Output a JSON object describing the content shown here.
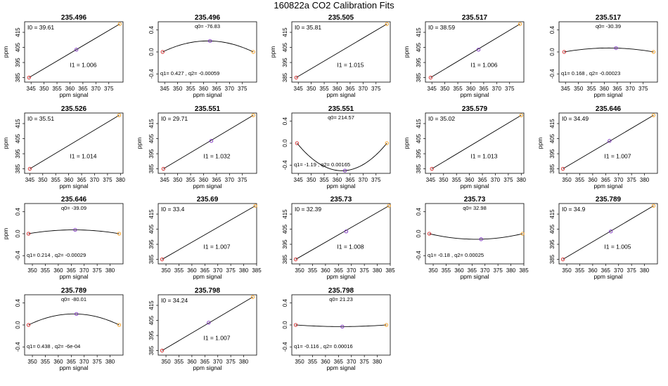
{
  "page_title": "160822a   CO2 Calibration Fits",
  "colors": {
    "line": "#000000",
    "point_low": "#d62728",
    "point_mid": "#7b2fbe",
    "point_high": "#ff9f1c"
  },
  "chart_data": [
    {
      "type": "line",
      "title": "235.496",
      "kind": "linear",
      "xlabel": "ppm signal",
      "ylabel": "ppm",
      "xlim": [
        342.5,
        380.5
      ],
      "ylim": [
        382,
        422
      ],
      "xticks": [
        345,
        350,
        355,
        360,
        365,
        370,
        375
      ],
      "yticks": [
        385,
        395,
        405,
        415
      ],
      "x": [
        344.2,
        362.5,
        379.2
      ],
      "y": [
        385.0,
        403.5,
        420.5
      ],
      "coef_label_top": "I0 =  39.61",
      "coef_label_bottom": "I1 =  1.006"
    },
    {
      "type": "line",
      "title": "235.496",
      "kind": "quadratic",
      "xlabel": "ppm signal",
      "ylabel": "",
      "xlim": [
        342.5,
        380.5
      ],
      "ylim": [
        -0.55,
        0.55
      ],
      "xticks": [
        345,
        350,
        355,
        360,
        365,
        370,
        375
      ],
      "yticks": [
        -0.4,
        0.0,
        0.4
      ],
      "x": [
        344.2,
        362.5,
        379.2
      ],
      "y": [
        0.0,
        0.2,
        0.0
      ],
      "coef_label_top": "q0= -76.83",
      "coef_label_bottom": "q1= 0.427 , q2= -0.00059"
    },
    {
      "type": "line",
      "title": "235.505",
      "kind": "linear",
      "xlabel": "ppm signal",
      "ylabel": "ppm",
      "xlim": [
        342.5,
        380.5
      ],
      "ylim": [
        382,
        422
      ],
      "xticks": [
        345,
        350,
        355,
        360,
        365,
        370,
        375
      ],
      "yticks": [
        385,
        395,
        405,
        415
      ],
      "x": [
        344.2,
        379.2
      ],
      "y": [
        385.0,
        420.5
      ],
      "coef_label_top": "I0 =  35.81",
      "coef_label_bottom": "I1 =  1.015"
    },
    {
      "type": "line",
      "title": "235.517",
      "kind": "linear",
      "xlabel": "ppm signal",
      "ylabel": "ppm",
      "xlim": [
        342.5,
        380.5
      ],
      "ylim": [
        382,
        422
      ],
      "xticks": [
        345,
        350,
        355,
        360,
        365,
        370,
        375
      ],
      "yticks": [
        385,
        395,
        405,
        415
      ],
      "x": [
        344.5,
        363.0,
        379.0
      ],
      "y": [
        385.0,
        403.5,
        420.5
      ],
      "coef_label_top": "I0 =  38.59",
      "coef_label_bottom": "I1 =  1.006"
    },
    {
      "type": "line",
      "title": "235.517",
      "kind": "quadratic",
      "xlabel": "ppm signal",
      "ylabel": "",
      "xlim": [
        342.5,
        380.5
      ],
      "ylim": [
        -0.55,
        0.55
      ],
      "xticks": [
        345,
        350,
        355,
        360,
        365,
        370,
        375
      ],
      "yticks": [
        -0.4,
        0.0,
        0.4
      ],
      "x": [
        344.5,
        364.5,
        379.0
      ],
      "y": [
        0.0,
        0.07,
        0.0
      ],
      "coef_label_top": "q0= -30.39",
      "coef_label_bottom": "q1= 0.168 , q2= -0.00023"
    },
    {
      "type": "line",
      "title": "235.526",
      "kind": "linear",
      "xlabel": "ppm signal",
      "ylabel": "ppm",
      "xlim": [
        343.0,
        381.0
      ],
      "ylim": [
        382,
        422
      ],
      "xticks": [
        345,
        350,
        355,
        360,
        365,
        370,
        375,
        380
      ],
      "yticks": [
        385,
        395,
        405,
        415
      ],
      "x": [
        345.0,
        379.5
      ],
      "y": [
        385.0,
        420.5
      ],
      "coef_label_top": "I0 =  35.51",
      "coef_label_bottom": "I1 =  1.014"
    },
    {
      "type": "line",
      "title": "235.551",
      "kind": "linear",
      "xlabel": "ppm signal",
      "ylabel": "ppm",
      "xlim": [
        342.5,
        380.5
      ],
      "ylim": [
        382,
        422
      ],
      "xticks": [
        345,
        350,
        355,
        360,
        365,
        370,
        375
      ],
      "yticks": [
        385,
        395,
        405,
        415
      ],
      "x": [
        344.5,
        363.0,
        379.2
      ],
      "y": [
        385.0,
        403.5,
        420.5
      ],
      "coef_label_top": "I0 =  29.71",
      "coef_label_bottom": "I1 =  1.032"
    },
    {
      "type": "line",
      "title": "235.551",
      "kind": "quadratic",
      "xlabel": "ppm signal",
      "ylabel": "",
      "xlim": [
        342.5,
        380.5
      ],
      "ylim": [
        -0.55,
        0.55
      ],
      "xticks": [
        345,
        350,
        355,
        360,
        365,
        370,
        375
      ],
      "yticks": [
        -0.4,
        0.0,
        0.4
      ],
      "x": [
        344.5,
        363.0,
        379.2
      ],
      "y": [
        0.0,
        -0.5,
        0.0
      ],
      "coef_label_top": "q0= 214.57",
      "coef_label_bottom": "q1= -1.19 , q2= 0.00165"
    },
    {
      "type": "line",
      "title": "235.579",
      "kind": "linear",
      "xlabel": "ppm signal",
      "ylabel": "ppm",
      "xlim": [
        343.0,
        381.0
      ],
      "ylim": [
        382,
        422
      ],
      "xticks": [
        345,
        350,
        355,
        360,
        365,
        370,
        375,
        380
      ],
      "yticks": [
        385,
        395,
        405,
        415
      ],
      "x": [
        345.5,
        380.0
      ],
      "y": [
        385.0,
        420.5
      ],
      "coef_label_top": "I0 =  35.02",
      "coef_label_bottom": "I1 =  1.013"
    },
    {
      "type": "line",
      "title": "235.646",
      "kind": "linear",
      "xlabel": "ppm signal",
      "ylabel": "ppm",
      "xlim": [
        347.0,
        385.0
      ],
      "ylim": [
        382,
        422
      ],
      "xticks": [
        350,
        355,
        360,
        365,
        370,
        375,
        380
      ],
      "yticks": [
        385,
        395,
        405,
        415
      ],
      "x": [
        348.5,
        366.5,
        383.5
      ],
      "y": [
        385.0,
        403.5,
        420.5
      ],
      "coef_label_top": "I0 =  34.49",
      "coef_label_bottom": "I1 =  1.007"
    },
    {
      "type": "line",
      "title": "235.646",
      "kind": "quadratic",
      "xlabel": "ppm signal",
      "ylabel": "ppm",
      "xlim": [
        347.0,
        385.0
      ],
      "ylim": [
        -0.55,
        0.55
      ],
      "xticks": [
        350,
        355,
        360,
        365,
        370,
        375,
        380
      ],
      "yticks": [
        -0.4,
        0.0,
        0.4
      ],
      "x": [
        348.5,
        366.5,
        383.5
      ],
      "y": [
        0.0,
        0.07,
        0.0
      ],
      "coef_label_top": "q0= -39.09",
      "coef_label_bottom": "q1= 0.214 , q2= -0.00029"
    },
    {
      "type": "line",
      "title": "235.69",
      "kind": "linear",
      "xlabel": "ppm signal",
      "ylabel": "",
      "xlim": [
        347.0,
        385.0
      ],
      "ylim": [
        382,
        422
      ],
      "xticks": [
        350,
        355,
        360,
        365,
        370,
        375,
        380,
        385
      ],
      "yticks": [
        385,
        395,
        405,
        415
      ],
      "x": [
        348.5,
        384.5
      ],
      "y": [
        385.0,
        420.5
      ],
      "coef_label_top": "I0 =  33.4",
      "coef_label_bottom": "I1 =  1.007"
    },
    {
      "type": "line",
      "title": "235.73",
      "kind": "linear",
      "xlabel": "ppm signal",
      "ylabel": "",
      "xlim": [
        347.0,
        385.0
      ],
      "ylim": [
        382,
        422
      ],
      "xticks": [
        350,
        355,
        360,
        365,
        370,
        375,
        380,
        385
      ],
      "yticks": [
        385,
        395,
        405,
        415
      ],
      "x": [
        348.5,
        368.0,
        384.5
      ],
      "y": [
        385.0,
        403.5,
        420.5
      ],
      "coef_label_top": "I0 =  32.39",
      "coef_label_bottom": "I1 =  1.008"
    },
    {
      "type": "line",
      "title": "235.73",
      "kind": "quadratic",
      "xlabel": "ppm signal",
      "ylabel": "",
      "xlim": [
        347.0,
        385.0
      ],
      "ylim": [
        -0.55,
        0.55
      ],
      "xticks": [
        350,
        355,
        360,
        365,
        370,
        375,
        380,
        385
      ],
      "yticks": [
        -0.4,
        0.0,
        0.4
      ],
      "x": [
        348.5,
        368.5,
        384.5
      ],
      "y": [
        0.0,
        -0.1,
        0.0
      ],
      "coef_label_top": "q0= 32.98",
      "coef_label_bottom": "q1= -0.18 , q2= 0.00025"
    },
    {
      "type": "line",
      "title": "235.789",
      "kind": "linear",
      "xlabel": "ppm signal",
      "ylabel": "",
      "xlim": [
        347.0,
        385.0
      ],
      "ylim": [
        382,
        422
      ],
      "xticks": [
        350,
        355,
        360,
        365,
        370,
        375,
        380
      ],
      "yticks": [
        385,
        395,
        405,
        415
      ],
      "x": [
        348.5,
        367.0,
        383.5
      ],
      "y": [
        385.0,
        403.5,
        420.5
      ],
      "coef_label_top": "I0 =  34.9",
      "coef_label_bottom": "I1 =  1.005"
    },
    {
      "type": "line",
      "title": "235.789",
      "kind": "quadratic",
      "xlabel": "ppm signal",
      "ylabel": "",
      "xlim": [
        347.0,
        385.0
      ],
      "ylim": [
        -0.55,
        0.55
      ],
      "xticks": [
        350,
        355,
        360,
        365,
        370,
        375,
        380
      ],
      "yticks": [
        -0.4,
        0.0,
        0.4
      ],
      "x": [
        348.5,
        367.0,
        383.5
      ],
      "y": [
        0.0,
        0.2,
        0.0
      ],
      "coef_label_top": "q0= -80.01",
      "coef_label_bottom": "q1= 0.438 , q2= -6e-04"
    },
    {
      "type": "line",
      "title": "235.798",
      "kind": "linear",
      "xlabel": "ppm signal",
      "ylabel": "",
      "xlim": [
        347.0,
        385.0
      ],
      "ylim": [
        382,
        422
      ],
      "xticks": [
        350,
        355,
        360,
        365,
        370,
        375,
        380
      ],
      "yticks": [
        385,
        395,
        405,
        415
      ],
      "x": [
        348.5,
        366.5,
        383.5
      ],
      "y": [
        385.0,
        403.5,
        420.5
      ],
      "coef_label_top": "I0 =  34.24",
      "coef_label_bottom": "I1 =  1.007"
    },
    {
      "type": "line",
      "title": "235.798",
      "kind": "quadratic",
      "xlabel": "ppm signal",
      "ylabel": "",
      "xlim": [
        347.0,
        385.0
      ],
      "ylim": [
        -0.55,
        0.55
      ],
      "xticks": [
        350,
        355,
        360,
        365,
        370,
        375,
        380
      ],
      "yticks": [
        -0.4,
        0.0,
        0.4
      ],
      "x": [
        348.5,
        366.5,
        383.5
      ],
      "y": [
        0.0,
        -0.03,
        0.0
      ],
      "coef_label_top": "q0= 21.23",
      "coef_label_bottom": "q1= -0.116 , q2= 0.00016"
    }
  ]
}
